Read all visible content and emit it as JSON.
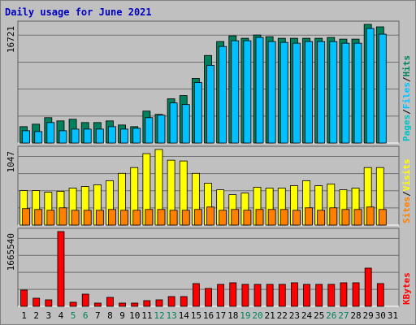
{
  "chart_data": {
    "type": "bar",
    "title": "Daily usage for June 2021",
    "categories": [
      "1",
      "2",
      "3",
      "4",
      "5",
      "6",
      "7",
      "8",
      "9",
      "10",
      "11",
      "12",
      "13",
      "14",
      "15",
      "16",
      "17",
      "18",
      "19",
      "20",
      "21",
      "22",
      "23",
      "24",
      "25",
      "26",
      "27",
      "28",
      "29",
      "30",
      "31"
    ],
    "category_colors": [
      "#000000",
      "#000000",
      "#000000",
      "#000000",
      "#00805c",
      "#00805c",
      "#000000",
      "#000000",
      "#000000",
      "#000000",
      "#000000",
      "#00805c",
      "#00805c",
      "#000000",
      "#000000",
      "#000000",
      "#000000",
      "#000000",
      "#00805c",
      "#00805c",
      "#000000",
      "#000000",
      "#000000",
      "#000000",
      "#000000",
      "#00805c",
      "#00805c",
      "#000000",
      "#000000",
      "#000000",
      "#000000"
    ],
    "legend_separator": "/",
    "panels": [
      {
        "ylim": [
          0,
          16721
        ],
        "yticks": [
          16721
        ],
        "series": [
          {
            "name": "Pages",
            "color": "#00c0c0",
            "values": [
              null,
              null,
              null,
              null,
              null,
              null,
              null,
              null,
              null,
              null,
              null,
              null,
              null,
              null,
              null,
              null,
              null,
              null,
              null,
              null,
              null,
              null,
              null,
              null,
              null,
              null,
              null,
              null,
              null,
              null,
              null
            ]
          },
          {
            "name": "Files",
            "color": "#00c0ff",
            "values": [
              1730,
              1614,
              2883,
              1730,
              1960,
              1960,
              1960,
              2306,
              1960,
              2076,
              3575,
              3921,
              5650,
              5420,
              8533,
              10954,
              13607,
              14415,
              14415,
              14876,
              14300,
              14184,
              14069,
              14300,
              14300,
              14300,
              14069,
              14069,
              16145,
              15338,
              null
            ]
          },
          {
            "name": "Hits",
            "color": "#00805c",
            "values": [
              2306,
              2652,
              3575,
              3114,
              3344,
              2883,
              2883,
              3114,
              2537,
              2306,
              4497,
              4036,
              6227,
              6688,
              9110,
              12339,
              14300,
              15107,
              14761,
              15222,
              14992,
              14761,
              14761,
              14761,
              14761,
              14876,
              14646,
              14646,
              16721,
              16375,
              null
            ]
          }
        ]
      },
      {
        "ylim": [
          0,
          1047
        ],
        "yticks": [
          1047
        ],
        "series": [
          {
            "name": "Sites",
            "color": "#ff8000",
            "values": [
              228,
              216,
              205,
              239,
              205,
              205,
              205,
              216,
              205,
              205,
              216,
              216,
              205,
              205,
              216,
              250,
              205,
              216,
              205,
              216,
              216,
              216,
              205,
              239,
              205,
              239,
              216,
              216,
              250,
              216,
              null
            ]
          },
          {
            "name": "Visits",
            "color": "#ffff00",
            "values": [
              478,
              478,
              455,
              467,
              512,
              535,
              558,
              615,
              717,
              797,
              990,
              1047,
              899,
              888,
              717,
              580,
              489,
              421,
              444,
              523,
              512,
              512,
              546,
              615,
              546,
              569,
              489,
              512,
              797,
              797,
              null
            ]
          }
        ]
      },
      {
        "ylim": [
          0,
          1665540
        ],
        "yticks": [
          1665540
        ],
        "series": [
          {
            "name": "KBytes",
            "color": "#ff0000",
            "values": [
              362080,
              181040,
              144832,
              1665540,
              90520,
              271560,
              72416,
              199144,
              72416,
              72416,
              126728,
              144832,
              217248,
              217248,
              506912,
              398288,
              488808,
              525016,
              488808,
              488808,
              488808,
              488808,
              525016,
              488808,
              488808,
              488808,
              525016,
              525016,
              850888,
              506912,
              null
            ]
          }
        ]
      }
    ]
  }
}
